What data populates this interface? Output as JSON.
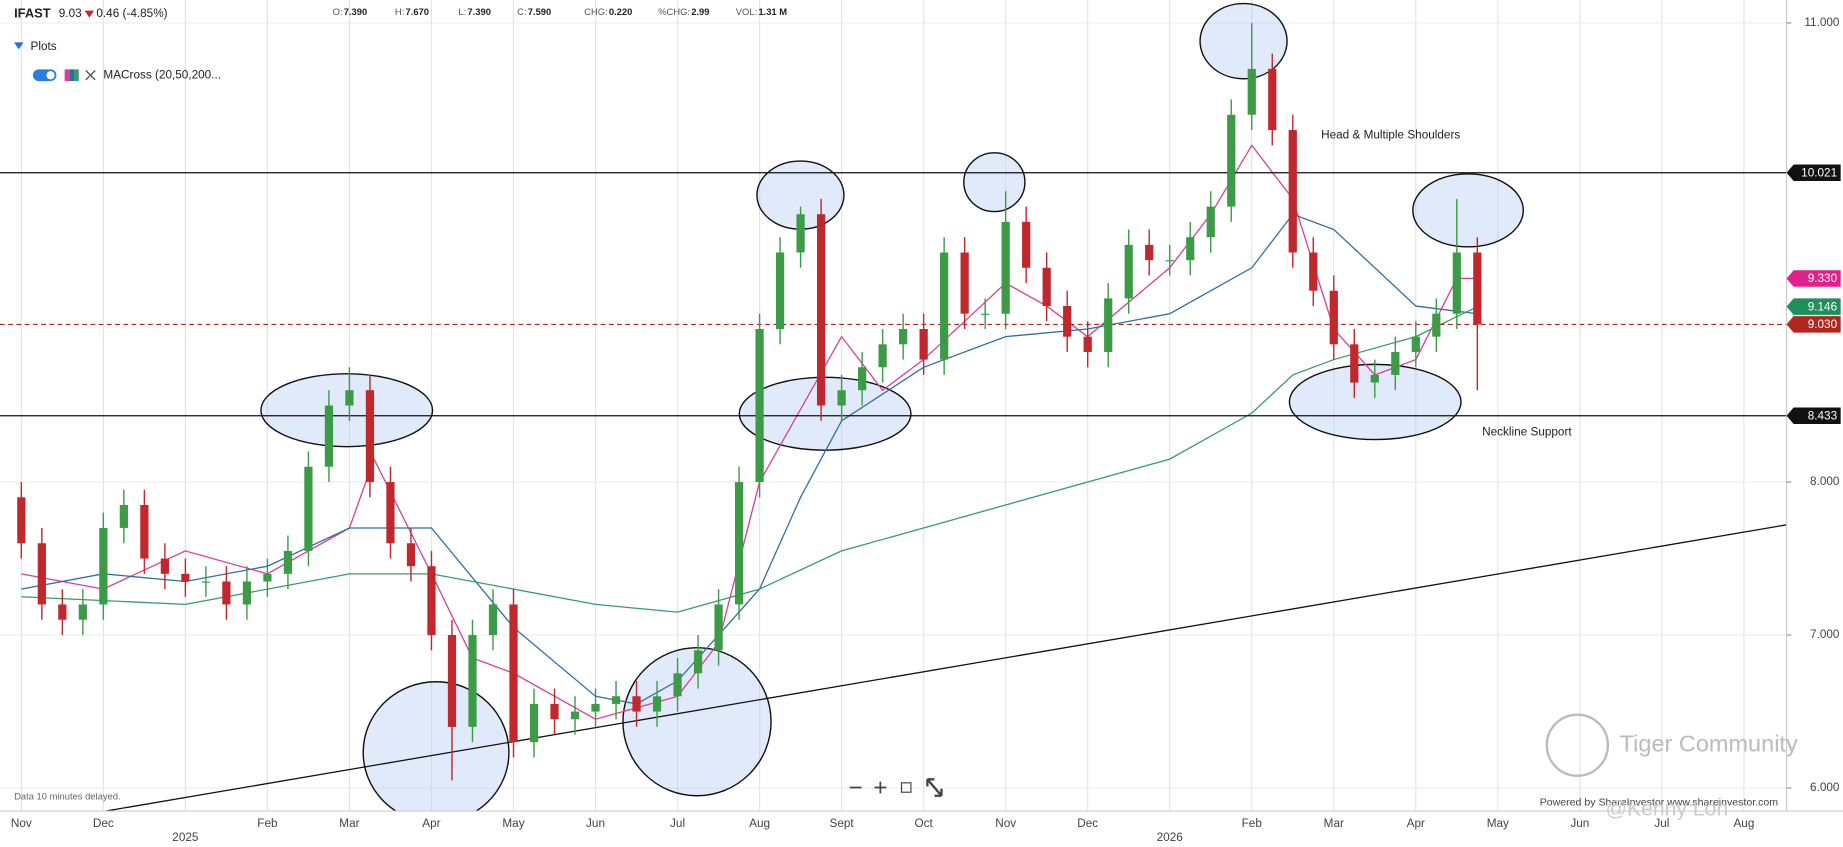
{
  "header": {
    "symbol": "IFAST",
    "price": "9.03",
    "change": "0.46 (-4.85%)",
    "ohlc": [
      {
        "label": "O:",
        "value": "7.390"
      },
      {
        "label": "H:",
        "value": "7.670"
      },
      {
        "label": "L:",
        "value": "7.390"
      },
      {
        "label": "C:",
        "value": "7.590"
      },
      {
        "label": "CHG:",
        "value": "0.220"
      },
      {
        "label": "%CHG:",
        "value": "2.99"
      },
      {
        "label": "VOL:",
        "value": "1.31 M"
      }
    ]
  },
  "plots_panel": {
    "title": "Plots",
    "item": "MACross (20,50,200..."
  },
  "footer": {
    "delay_note": "Data 10 minutes delayed.",
    "powered_by": "Powered by ShareInvestor www.shareinvestor.com"
  },
  "watermark": {
    "brand": "Tiger Community",
    "user": "@Kenny Loh"
  },
  "chart_data": {
    "type": "candlestick",
    "up_color": "#3d9b47",
    "down_color": "#c0282d",
    "x": [
      0,
      0.25,
      0.5,
      0.75,
      1,
      1.25,
      1.5,
      1.75,
      2,
      2.25,
      2.5,
      2.75,
      3,
      3.25,
      3.5,
      3.75,
      4,
      4.25,
      4.5,
      4.75,
      5,
      5.25,
      5.5,
      5.75,
      6,
      6.25,
      6.5,
      6.75,
      7,
      7.25,
      7.5,
      7.75,
      8,
      8.25,
      8.5,
      8.75,
      9,
      9.25,
      9.5,
      9.75,
      10,
      10.25,
      10.5,
      10.75,
      11,
      11.25,
      11.5,
      11.75,
      12,
      12.25,
      12.5,
      12.75,
      13,
      13.25,
      13.5,
      13.75,
      14,
      14.25,
      14.5,
      14.75,
      15,
      15.25,
      15.5,
      15.75,
      16,
      16.25,
      16.5,
      16.75,
      17,
      17.25,
      17.5,
      17.75
    ],
    "open": [
      7.9,
      7.6,
      7.2,
      7.1,
      7.2,
      7.7,
      7.85,
      7.5,
      7.4,
      7.35,
      7.35,
      7.2,
      7.35,
      7.4,
      7.55,
      8.1,
      8.5,
      8.6,
      8.0,
      7.6,
      7.45,
      7.0,
      6.4,
      7.0,
      7.2,
      6.3,
      6.55,
      6.45,
      6.5,
      6.55,
      6.6,
      6.5,
      6.6,
      6.75,
      6.9,
      7.2,
      8.0,
      9.0,
      9.5,
      9.75,
      8.5,
      8.6,
      8.75,
      8.9,
      9.0,
      8.8,
      9.5,
      9.1,
      9.1,
      9.7,
      9.4,
      9.15,
      8.95,
      8.85,
      9.2,
      9.55,
      9.45,
      9.45,
      9.6,
      9.8,
      10.4,
      10.7,
      10.3,
      9.5,
      9.25,
      8.9,
      8.65,
      8.7,
      8.85,
      8.95,
      9.1,
      9.5
    ],
    "high": [
      8.0,
      7.7,
      7.3,
      7.3,
      7.8,
      7.95,
      7.95,
      7.6,
      7.5,
      7.45,
      7.45,
      7.45,
      7.5,
      7.65,
      8.2,
      8.6,
      8.75,
      8.7,
      8.1,
      7.7,
      7.55,
      7.1,
      7.1,
      7.3,
      7.3,
      6.65,
      6.65,
      6.6,
      6.65,
      6.7,
      6.7,
      6.7,
      6.85,
      7.0,
      7.3,
      8.1,
      9.1,
      9.6,
      9.8,
      9.85,
      8.7,
      8.85,
      9.0,
      9.1,
      9.1,
      9.6,
      9.6,
      9.2,
      9.9,
      9.8,
      9.5,
      9.25,
      9.05,
      9.3,
      9.65,
      9.65,
      9.55,
      9.7,
      9.9,
      10.5,
      11.0,
      10.8,
      10.4,
      9.6,
      9.35,
      9.0,
      8.8,
      8.95,
      9.05,
      9.2,
      9.85,
      9.6
    ],
    "low": [
      7.5,
      7.1,
      7.0,
      7.0,
      7.1,
      7.6,
      7.4,
      7.3,
      7.25,
      7.25,
      7.1,
      7.1,
      7.25,
      7.3,
      7.45,
      8.0,
      8.4,
      7.9,
      7.5,
      7.35,
      6.9,
      6.05,
      6.3,
      6.9,
      6.2,
      6.2,
      6.35,
      6.35,
      6.4,
      6.45,
      6.4,
      6.4,
      6.5,
      6.65,
      6.8,
      7.1,
      7.9,
      8.9,
      9.4,
      8.4,
      8.4,
      8.5,
      8.65,
      8.8,
      8.7,
      8.7,
      9.0,
      9.0,
      9.0,
      9.3,
      9.05,
      8.85,
      8.75,
      8.75,
      9.1,
      9.35,
      9.35,
      9.35,
      9.5,
      9.7,
      10.3,
      10.2,
      9.4,
      9.15,
      8.8,
      8.55,
      8.55,
      8.6,
      8.75,
      8.85,
      9.0,
      8.6
    ],
    "close": [
      7.6,
      7.2,
      7.1,
      7.2,
      7.7,
      7.85,
      7.5,
      7.4,
      7.35,
      7.35,
      7.2,
      7.35,
      7.4,
      7.55,
      8.1,
      8.5,
      8.6,
      8.0,
      7.6,
      7.45,
      7.0,
      6.4,
      7.0,
      7.2,
      6.3,
      6.55,
      6.45,
      6.5,
      6.55,
      6.6,
      6.5,
      6.6,
      6.75,
      6.9,
      7.2,
      8.0,
      9.0,
      9.5,
      9.75,
      8.5,
      8.6,
      8.75,
      8.9,
      9.0,
      8.8,
      9.5,
      9.1,
      9.1,
      9.7,
      9.4,
      9.15,
      8.95,
      8.85,
      9.2,
      9.55,
      9.45,
      9.45,
      9.6,
      9.8,
      10.4,
      10.7,
      10.3,
      9.5,
      9.25,
      8.9,
      8.65,
      8.7,
      8.85,
      8.95,
      9.1,
      9.5,
      9.03
    ],
    "series": [
      {
        "color": "#d6409a",
        "x": [
          0,
          1,
          2,
          3,
          4,
          4.3,
          5,
          5.5,
          6,
          7,
          8,
          8.5,
          9,
          10,
          10.5,
          11,
          12,
          12.5,
          13,
          14,
          14.5,
          15,
          15.5,
          16,
          16.5,
          17,
          17.5,
          17.75
        ],
        "values": [
          7.4,
          7.3,
          7.55,
          7.4,
          7.7,
          8.15,
          7.4,
          6.85,
          6.75,
          6.45,
          6.6,
          6.95,
          8.0,
          8.95,
          8.6,
          8.8,
          9.3,
          9.15,
          8.95,
          9.4,
          9.75,
          10.2,
          9.85,
          9.0,
          8.7,
          8.8,
          9.33,
          9.33
        ]
      },
      {
        "color": "#2f6f9f",
        "x": [
          0,
          1,
          2,
          3,
          4,
          5,
          6,
          7,
          7.5,
          8,
          9,
          9.5,
          10,
          11,
          12,
          13,
          14,
          15,
          15.5,
          16,
          17,
          17.75
        ],
        "values": [
          7.3,
          7.4,
          7.35,
          7.45,
          7.7,
          7.7,
          7.05,
          6.6,
          6.55,
          6.7,
          7.3,
          7.9,
          8.4,
          8.75,
          8.95,
          9.0,
          9.1,
          9.4,
          9.75,
          9.65,
          9.15,
          9.1
        ]
      },
      {
        "color": "#3a9b6a",
        "x": [
          0,
          2,
          4,
          5,
          7,
          8,
          9,
          10,
          11,
          12,
          13,
          14,
          15,
          15.5,
          16,
          17,
          17.75
        ],
        "values": [
          7.25,
          7.2,
          7.4,
          7.4,
          7.2,
          7.15,
          7.3,
          7.55,
          7.7,
          7.85,
          8.0,
          8.15,
          8.45,
          8.7,
          8.8,
          8.95,
          9.146
        ]
      }
    ],
    "trendline": {
      "x": [
        1.03,
        21.52
      ],
      "values": [
        5.85,
        7.72
      ]
    },
    "price_tags": [
      {
        "value": 10.021,
        "label": "10.021",
        "color": "#111111",
        "line": "solid"
      },
      {
        "value": 9.33,
        "label": "9.330",
        "color": "#e0218a"
      },
      {
        "value": 9.146,
        "label": "9.146",
        "color": "#1e8e5a"
      },
      {
        "value": 9.03,
        "label": "9.030",
        "color": "#b3261e",
        "line": "dashed"
      },
      {
        "value": 8.433,
        "label": "8.433",
        "color": "#111111",
        "line": "solid"
      }
    ],
    "annotations": [
      "Head & Multiple Shoulders",
      "Neckline Support"
    ],
    "xlim": [
      -0.26,
      21.52
    ],
    "ylim": [
      5.85,
      11.15
    ],
    "xticks": [
      {
        "value": 0,
        "label": "Nov"
      },
      {
        "value": 1,
        "label": "Dec"
      },
      {
        "value": 2,
        "label": "2025"
      },
      {
        "value": 3,
        "label": "Feb"
      },
      {
        "value": 4,
        "label": "Mar"
      },
      {
        "value": 5,
        "label": "Apr"
      },
      {
        "value": 6,
        "label": "May"
      },
      {
        "value": 7,
        "label": "Jun"
      },
      {
        "value": 8,
        "label": "Jul"
      },
      {
        "value": 9,
        "label": "Aug"
      },
      {
        "value": 10,
        "label": "Sept"
      },
      {
        "value": 11,
        "label": "Oct"
      },
      {
        "value": 12,
        "label": "Nov"
      },
      {
        "value": 13,
        "label": "Dec"
      },
      {
        "value": 14,
        "label": "2026"
      },
      {
        "value": 15,
        "label": "Feb"
      },
      {
        "value": 16,
        "label": "Mar"
      },
      {
        "value": 17,
        "label": "Apr"
      },
      {
        "value": 18,
        "label": "May"
      },
      {
        "value": 19,
        "label": "Jun"
      },
      {
        "value": 20,
        "label": "Jul"
      },
      {
        "value": 21,
        "label": "Aug"
      }
    ],
    "yticks": [
      {
        "value": 6,
        "label": "6.000"
      },
      {
        "value": 7,
        "label": "7.000"
      },
      {
        "value": 8,
        "label": "8.000"
      },
      {
        "value": 11,
        "label": "11.000"
      }
    ],
    "grid": true
  }
}
